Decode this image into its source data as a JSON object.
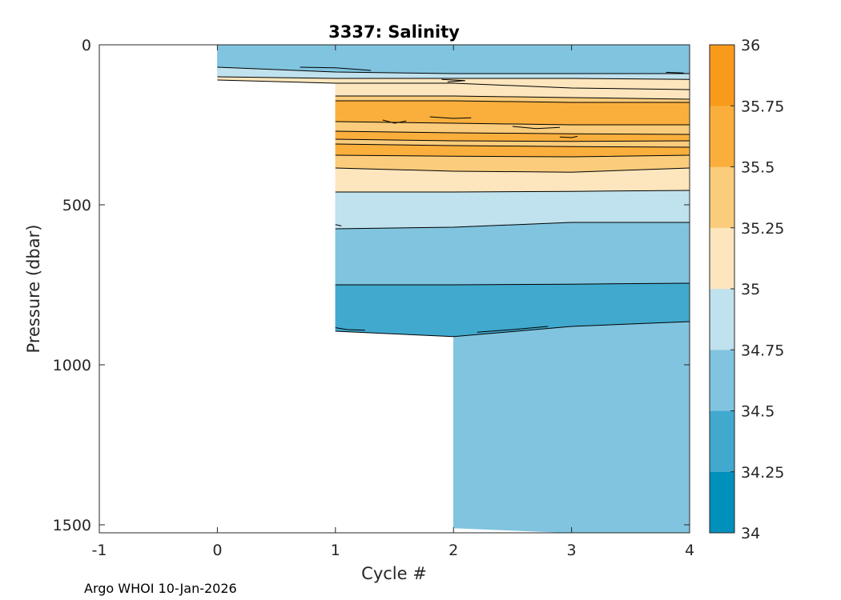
{
  "chart_data": {
    "type": "contour",
    "title": "3337:  Salinity",
    "xlabel": "Cycle #",
    "ylabel": "Pressure (dbar)",
    "xlim": [
      -1,
      4
    ],
    "ylim": [
      0,
      1525
    ],
    "y_reversed": true,
    "xticks": [
      -1,
      0,
      1,
      2,
      3,
      4
    ],
    "yticks": [
      0,
      500,
      1000,
      1500
    ],
    "footer": "Argo WHOI 10-Jan-2026",
    "colorbar": {
      "levels": [
        34,
        34.25,
        34.5,
        34.75,
        35,
        35.25,
        35.5,
        35.75,
        36
      ],
      "tick_labels": [
        "34",
        "34.25",
        "34.5",
        "34.75",
        "35",
        "35.25",
        "35.5",
        "35.75",
        "36"
      ],
      "colors": [
        "#0090bc",
        "#41a9ce",
        "#80c4df",
        "#c0e1ee",
        "#fde6bd",
        "#fbcc7b",
        "#faaf3d",
        "#f99b1a"
      ]
    },
    "profiles": [
      {
        "cycle": 0,
        "max_pressure": 110
      },
      {
        "cycle": 1,
        "max_pressure": 920
      },
      {
        "cycle": 2,
        "max_pressure": 1510
      },
      {
        "cycle": 3,
        "max_pressure": 1525
      },
      {
        "cycle": 4,
        "max_pressure": 1525
      }
    ],
    "bands": [
      {
        "level": "34.5-34.75",
        "x_start": 0,
        "top": [
          0,
          0,
          0,
          0,
          0
        ],
        "bottom": [
          70,
          85,
          90,
          90,
          90
        ]
      },
      {
        "level": "34.75-35",
        "x_start": 0,
        "top": [
          70,
          85,
          90,
          90,
          90
        ],
        "bottom": [
          100,
          105,
          105,
          105,
          108
        ]
      },
      {
        "level": "35-35.25",
        "x_start": 0,
        "top": [
          100,
          105,
          105,
          105,
          108
        ],
        "bottom": [
          110,
          120,
          120,
          135,
          140
        ]
      },
      {
        "level": "35-35.25",
        "x_start": 1,
        "top": [
          120,
          120,
          135,
          140
        ],
        "bottom": [
          160,
          160,
          165,
          170
        ]
      },
      {
        "level": "35.25-35.5",
        "x_start": 1,
        "top": [
          160,
          160,
          165,
          170
        ],
        "bottom": [
          175,
          175,
          180,
          180
        ]
      },
      {
        "level": "35.5-35.75",
        "x_start": 1,
        "top": [
          175,
          175,
          180,
          180
        ],
        "bottom": [
          240,
          245,
          250,
          250
        ]
      },
      {
        "level": "35.25-35.5",
        "x_start": 1,
        "top": [
          240,
          245,
          250,
          250
        ],
        "bottom": [
          270,
          275,
          278,
          280
        ]
      },
      {
        "level": "35.5-35.75",
        "x_start": 1,
        "top": [
          270,
          275,
          278,
          280
        ],
        "bottom": [
          295,
          300,
          302,
          300
        ]
      },
      {
        "level": "35.25-35.5",
        "x_start": 1,
        "top": [
          295,
          300,
          302,
          300
        ],
        "bottom": [
          310,
          315,
          318,
          320
        ]
      },
      {
        "level": "35.5-35.75",
        "x_start": 1,
        "top": [
          310,
          315,
          318,
          320
        ],
        "bottom": [
          345,
          348,
          350,
          345
        ]
      },
      {
        "level": "35.25-35.5",
        "x_start": 1,
        "top": [
          345,
          348,
          350,
          345
        ],
        "bottom": [
          385,
          395,
          398,
          385
        ]
      },
      {
        "level": "35-35.25",
        "x_start": 1,
        "top": [
          385,
          395,
          398,
          385
        ],
        "bottom": [
          460,
          460,
          458,
          455
        ]
      },
      {
        "level": "34.75-35",
        "x_start": 1,
        "top": [
          460,
          460,
          458,
          455
        ],
        "bottom": [
          575,
          570,
          555,
          555
        ]
      },
      {
        "level": "34.5-34.75",
        "x_start": 1,
        "top": [
          575,
          570,
          555,
          555
        ],
        "bottom": [
          750,
          750,
          748,
          745
        ]
      },
      {
        "level": "34.25-34.5",
        "x_start": 1,
        "top": [
          750,
          750,
          748,
          745
        ],
        "bottom": [
          895,
          912,
          880,
          865
        ]
      },
      {
        "level": "34.5-34.75",
        "x_start": 2,
        "top": [
          912,
          880,
          865
        ],
        "bottom": [
          1510,
          1525,
          1525
        ]
      }
    ]
  }
}
